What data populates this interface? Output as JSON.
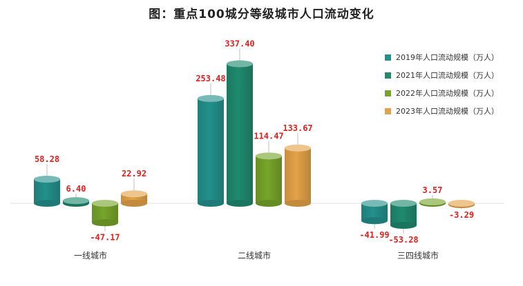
{
  "chart_data": {
    "type": "bar",
    "title": "图：重点100城分等级城市人口流动变化",
    "categories": [
      "一线城市",
      "二线城市",
      "三四线城市"
    ],
    "series": [
      {
        "name": "2019年人口流动规模（万人）",
        "color": "#23908b",
        "values": [
          58.28,
          253.48,
          -41.99
        ]
      },
      {
        "name": "2021年人口流动规模（万人）",
        "color": "#1f8a6e",
        "values": [
          6.4,
          337.4,
          -53.28
        ]
      },
      {
        "name": "2022年人口流动规模（万人）",
        "color": "#76a52a",
        "values": [
          -47.17,
          114.47,
          3.57
        ]
      },
      {
        "name": "2023年人口流动规模（万人）",
        "color": "#e3a247",
        "values": [
          22.92,
          133.67,
          -3.29
        ]
      }
    ],
    "data_labels": [
      [
        "58.28",
        "253.48",
        "-41.99"
      ],
      [
        "6.40",
        "337.40",
        "-53.28"
      ],
      [
        "-47.17",
        "114.47",
        "3.57"
      ],
      [
        "22.92",
        "133.67",
        "-3.29"
      ]
    ],
    "label_color": "#e02020",
    "legend_position": "right",
    "style": "3d-cylinder",
    "grid": false
  }
}
